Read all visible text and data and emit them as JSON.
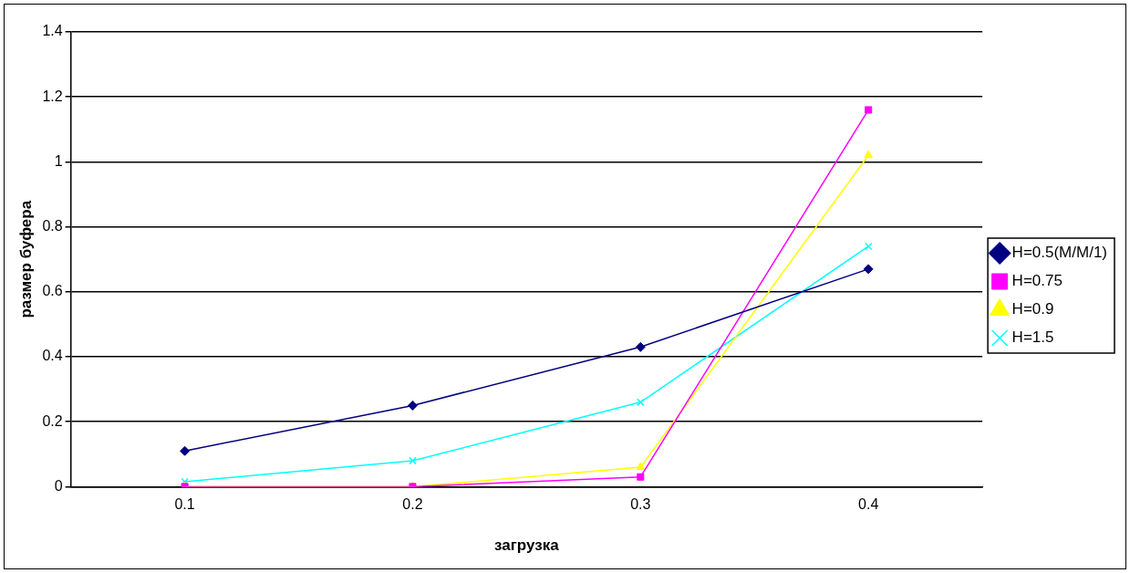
{
  "chart_data": {
    "type": "line",
    "xlabel": "загрузка",
    "ylabel": "размер буфера",
    "categories": [
      "0.1",
      "0.2",
      "0.3",
      "0.4"
    ],
    "series": [
      {
        "name": "H=0.5(M/M/1)",
        "color": "#000080",
        "marker": "diamond",
        "values": [
          0.11,
          0.25,
          0.43,
          0.67
        ]
      },
      {
        "name": "H=0.75",
        "color": "#ff00ff",
        "marker": "square",
        "values": [
          0,
          0,
          0.03,
          1.16
        ]
      },
      {
        "name": "H=0.9",
        "color": "#ffff00",
        "marker": "triangle",
        "values": [
          0,
          0,
          0.06,
          1.02
        ]
      },
      {
        "name": "H=1.5",
        "color": "#00ffff",
        "marker": "cross",
        "values": [
          0.015,
          0.08,
          0.26,
          0.74
        ]
      }
    ],
    "ylim": [
      0,
      1.4
    ],
    "yticks": [
      0,
      0.2,
      0.4,
      0.6,
      0.8,
      1,
      1.2,
      1.4
    ],
    "grid": "y",
    "legend": "right"
  }
}
